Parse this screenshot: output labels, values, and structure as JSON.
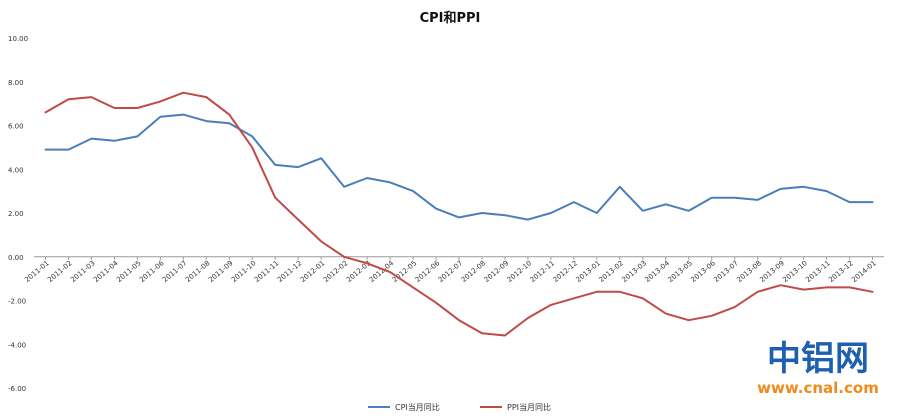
{
  "chart_data": {
    "type": "line",
    "title": "CPI和PPI",
    "xlabel": "",
    "ylabel": "",
    "ylim": [
      -6,
      10
    ],
    "y_ticks": [
      "10.00",
      "8.00",
      "6.00",
      "4.00",
      "2.00",
      "0.00",
      "-2.00",
      "-4.00",
      "-6.00"
    ],
    "grid": false,
    "legend_position": "bottom",
    "categories": [
      "2011-01",
      "2011-02",
      "2011-03",
      "2011-04",
      "2011-05",
      "2011-06",
      "2011-07",
      "2011-08",
      "2011-09",
      "2011-10",
      "2011-11",
      "2011-12",
      "2012-01",
      "2012-02",
      "2012-03",
      "2012-04",
      "2012-05",
      "2012-06",
      "2012-07",
      "2012-08",
      "2012-09",
      "2012-10",
      "2012-11",
      "2012-12",
      "2013-01",
      "2013-02",
      "2013-03",
      "2013-04",
      "2013-05",
      "2013-06",
      "2013-07",
      "2013-08",
      "2013-09",
      "2013-10",
      "2013-11",
      "2013-12",
      "2014-01"
    ],
    "series": [
      {
        "name": "CPI当月同比",
        "color": "#4a7ebb",
        "values": [
          4.9,
          4.9,
          5.4,
          5.3,
          5.5,
          6.4,
          6.5,
          6.2,
          6.1,
          5.5,
          4.2,
          4.1,
          4.5,
          3.2,
          3.6,
          3.4,
          3.0,
          2.2,
          1.8,
          2.0,
          1.9,
          1.7,
          2.0,
          2.5,
          2.0,
          3.2,
          2.1,
          2.4,
          2.1,
          2.7,
          2.7,
          2.6,
          3.1,
          3.2,
          3.0,
          2.5,
          2.5
        ]
      },
      {
        "name": "PPI当月同比",
        "color": "#be4b48",
        "values": [
          6.6,
          7.2,
          7.3,
          6.8,
          6.8,
          7.1,
          7.5,
          7.3,
          6.5,
          5.0,
          2.7,
          1.7,
          0.7,
          0.0,
          -0.3,
          -0.7,
          -1.4,
          -2.1,
          -2.9,
          -3.5,
          -3.6,
          -2.8,
          -2.2,
          -1.9,
          -1.6,
          -1.6,
          -1.9,
          -2.6,
          -2.9,
          -2.7,
          -2.3,
          -1.6,
          -1.3,
          -1.5,
          -1.4,
          -1.4,
          -1.6
        ]
      }
    ]
  },
  "watermark": {
    "brand_cn": "中铝网",
    "url": "www.cnal.com",
    "brand_color": "#1f5fb0",
    "url_color": "#f08a1c"
  }
}
